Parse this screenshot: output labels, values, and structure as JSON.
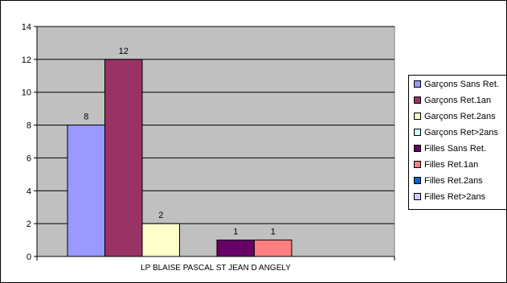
{
  "chart_data": {
    "type": "bar",
    "categories": [
      "LP BLAISE PASCAL ST JEAN D ANGELY"
    ],
    "series": [
      {
        "name": "Garçons Sans Ret.",
        "values": [
          8
        ],
        "color": "#9999FF"
      },
      {
        "name": "Garçons Ret.1an",
        "values": [
          12
        ],
        "color": "#993366"
      },
      {
        "name": "Garçons Ret.2ans",
        "values": [
          2
        ],
        "color": "#FFFFCC"
      },
      {
        "name": "Garçons Ret>2ans",
        "values": [
          null
        ],
        "color": "#CCFFFF"
      },
      {
        "name": "Filles Sans Ret.",
        "values": [
          1
        ],
        "color": "#660066"
      },
      {
        "name": "Filles Ret.1an",
        "values": [
          1
        ],
        "color": "#FF8080"
      },
      {
        "name": "Filles Ret.2ans",
        "values": [
          null
        ],
        "color": "#0066CC"
      },
      {
        "name": "Filles Ret>2ans",
        "values": [
          null
        ],
        "color": "#CCCCFF"
      }
    ],
    "ylim": [
      0,
      14
    ],
    "yticks": [
      0,
      2,
      4,
      6,
      8,
      10,
      12,
      14
    ],
    "grid": true,
    "legend": "right",
    "plot_background": "#C0C0C0"
  }
}
